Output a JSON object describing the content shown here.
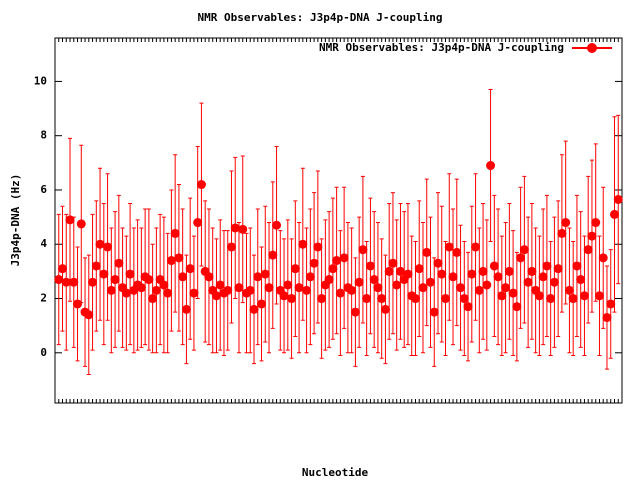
{
  "chart_data": {
    "type": "errorbar",
    "title": "NMR Observables: J3p4p-DNA J-coupling",
    "x_label": "Nucleotide",
    "y_label": "J3p4p-DNA (Hz)",
    "legend": "top right",
    "color": "#ff0000",
    "xlim": [
      0,
      151
    ],
    "ylim": [
      -1.85,
      11.6
    ],
    "yticks": [
      0,
      2,
      4,
      6,
      8,
      10
    ],
    "series": [
      {
        "name": "NMR Observables: J3p4p-DNA J-coupling",
        "color": "#ff0000",
        "x": [
          1,
          2,
          3,
          4,
          5,
          6,
          7,
          8,
          9,
          10,
          11,
          12,
          13,
          14,
          15,
          16,
          17,
          18,
          19,
          20,
          21,
          22,
          23,
          24,
          25,
          26,
          27,
          28,
          29,
          30,
          31,
          32,
          33,
          34,
          35,
          36,
          37,
          38,
          39,
          40,
          41,
          42,
          43,
          44,
          45,
          46,
          47,
          48,
          49,
          50,
          51,
          52,
          53,
          54,
          55,
          56,
          57,
          58,
          59,
          60,
          61,
          62,
          63,
          64,
          65,
          66,
          67,
          68,
          69,
          70,
          71,
          72,
          73,
          74,
          75,
          76,
          77,
          78,
          79,
          80,
          81,
          82,
          83,
          84,
          85,
          86,
          87,
          88,
          89,
          90,
          91,
          92,
          93,
          94,
          95,
          96,
          97,
          98,
          99,
          100,
          101,
          102,
          103,
          104,
          105,
          106,
          107,
          108,
          109,
          110,
          111,
          112,
          113,
          114,
          115,
          116,
          117,
          118,
          119,
          120,
          121,
          122,
          123,
          124,
          125,
          126,
          127,
          128,
          129,
          130,
          131,
          132,
          133,
          134,
          135,
          136,
          137,
          138,
          139,
          140,
          141,
          142,
          143,
          144,
          145,
          146,
          147,
          148,
          149,
          150
        ],
        "values": [
          2.7,
          3.1,
          2.6,
          4.9,
          2.6,
          1.8,
          4.75,
          1.5,
          1.4,
          2.6,
          3.2,
          4.0,
          2.9,
          3.9,
          2.3,
          2.7,
          3.3,
          2.4,
          2.2,
          2.9,
          2.3,
          2.5,
          2.4,
          2.8,
          2.7,
          2.0,
          2.3,
          2.7,
          2.5,
          2.2,
          3.4,
          4.4,
          3.5,
          2.8,
          1.6,
          3.1,
          2.2,
          4.8,
          6.2,
          3.0,
          2.8,
          2.3,
          2.1,
          2.5,
          2.2,
          2.3,
          3.9,
          4.6,
          2.4,
          4.55,
          2.2,
          2.3,
          1.6,
          2.8,
          1.8,
          2.9,
          2.4,
          3.6,
          4.7,
          2.3,
          2.1,
          2.5,
          2.0,
          3.1,
          2.4,
          4.0,
          2.3,
          2.8,
          3.3,
          3.9,
          2.0,
          2.5,
          2.7,
          3.1,
          3.4,
          2.2,
          3.5,
          2.4,
          2.3,
          1.5,
          2.6,
          3.8,
          2.0,
          3.2,
          2.7,
          2.4,
          2.0,
          1.6,
          3.0,
          3.3,
          2.5,
          3.0,
          2.7,
          2.9,
          2.1,
          2.0,
          3.1,
          2.4,
          3.7,
          2.6,
          1.5,
          3.3,
          2.9,
          2.0,
          3.9,
          2.8,
          3.7,
          2.4,
          2.0,
          1.7,
          2.9,
          3.9,
          2.3,
          3.0,
          2.5,
          6.9,
          3.2,
          2.8,
          2.1,
          2.4,
          3.0,
          2.2,
          1.7,
          3.5,
          3.8,
          2.6,
          3.0,
          2.3,
          2.1,
          2.8,
          3.2,
          2.0,
          2.6,
          3.1,
          4.4,
          4.8,
          2.3,
          2.0,
          3.2,
          2.7,
          2.1,
          3.8,
          4.3,
          4.8,
          2.1,
          3.5,
          1.3,
          1.8,
          5.1,
          5.65
        ],
        "errors": [
          2.4,
          2.3,
          2.5,
          3.0,
          2.4,
          2.1,
          2.9,
          2.0,
          2.2,
          2.5,
          2.4,
          2.8,
          2.6,
          2.7,
          2.3,
          2.5,
          2.5,
          2.2,
          2.1,
          2.6,
          2.3,
          2.4,
          2.2,
          2.5,
          2.6,
          2.0,
          2.3,
          2.4,
          2.5,
          2.2,
          2.6,
          2.9,
          2.7,
          2.5,
          2.0,
          2.6,
          2.1,
          2.8,
          3.0,
          2.6,
          2.5,
          2.3,
          2.1,
          2.4,
          2.3,
          2.2,
          2.8,
          2.6,
          2.4,
          2.7,
          2.2,
          2.3,
          2.0,
          2.5,
          2.1,
          2.5,
          2.4,
          2.7,
          2.9,
          2.2,
          2.1,
          2.4,
          2.2,
          2.5,
          2.4,
          2.8,
          2.3,
          2.5,
          2.6,
          2.8,
          2.2,
          2.4,
          2.5,
          2.6,
          2.7,
          2.3,
          2.6,
          2.4,
          2.3,
          2.0,
          2.4,
          2.7,
          2.1,
          2.5,
          2.5,
          2.4,
          2.2,
          2.0,
          2.5,
          2.6,
          2.4,
          2.5,
          2.5,
          2.6,
          2.2,
          2.1,
          2.5,
          2.4,
          2.7,
          2.4,
          2.0,
          2.6,
          2.5,
          2.1,
          2.7,
          2.5,
          2.7,
          2.3,
          2.1,
          2.0,
          2.5,
          2.7,
          2.3,
          2.5,
          2.4,
          2.8,
          2.6,
          2.5,
          2.2,
          2.4,
          2.5,
          2.3,
          2.0,
          2.6,
          2.7,
          2.4,
          2.5,
          2.3,
          2.2,
          2.5,
          2.6,
          2.1,
          2.4,
          2.5,
          2.9,
          3.0,
          2.3,
          2.1,
          2.6,
          2.5,
          2.2,
          2.7,
          2.8,
          2.9,
          2.2,
          2.6,
          1.9,
          2.0,
          3.6,
          3.1
        ]
      }
    ]
  }
}
